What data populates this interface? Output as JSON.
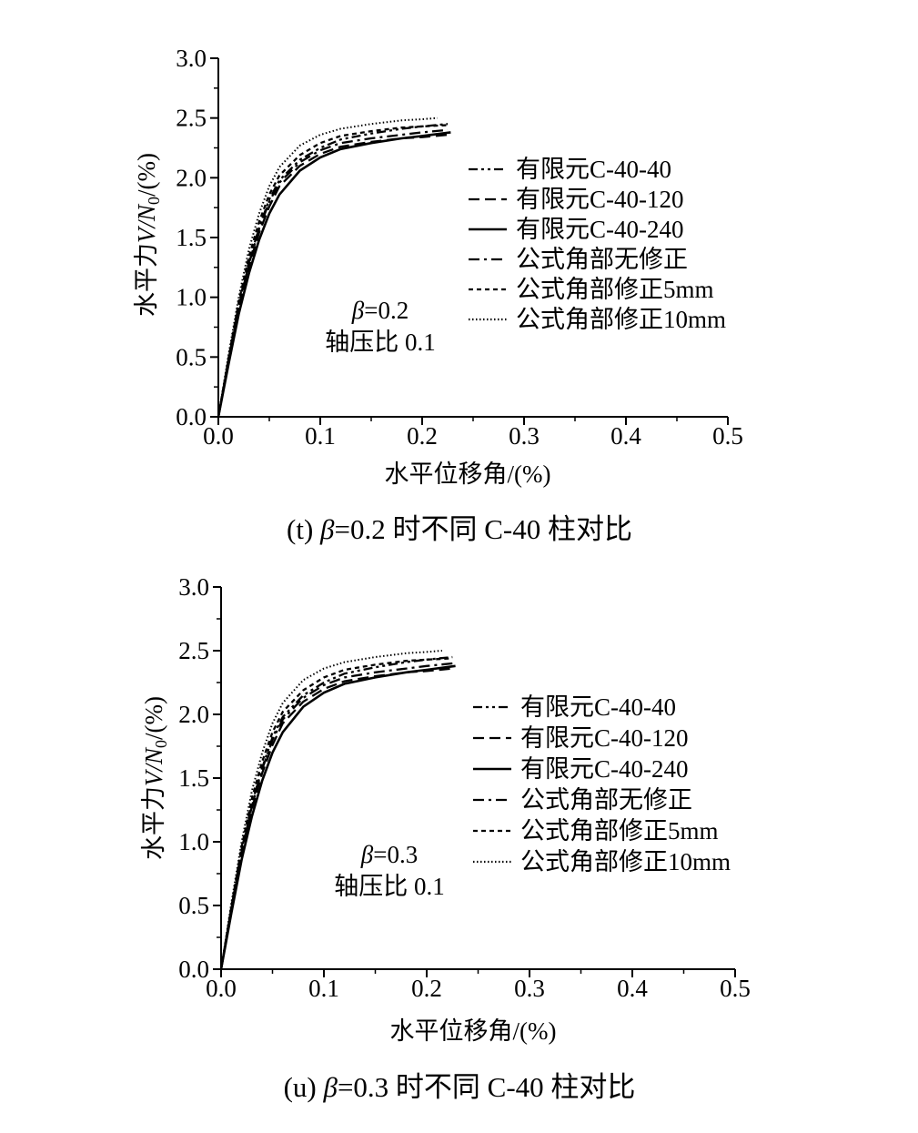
{
  "chart_data": [
    {
      "type": "line",
      "caption_id": "(t)",
      "caption_beta": "β",
      "caption_text": "=0.2 时不同 C-40 柱对比",
      "xlabel": "水平位移角/(%)",
      "ylabel_prefix": "水平力",
      "ylabel_var": "V/N",
      "ylabel_sub": "0",
      "ylabel_suffix": "/(%)",
      "xlim": [
        0,
        0.5
      ],
      "ylim": [
        0,
        3.0
      ],
      "xticks": [
        "0.0",
        "0.1",
        "0.2",
        "0.3",
        "0.4",
        "0.5"
      ],
      "yticks": [
        "0.0",
        "0.5",
        "1.0",
        "1.5",
        "2.0",
        "2.5",
        "3.0"
      ],
      "annotation_beta": "β",
      "annotation_value": "=0.2",
      "annotation_axial": "轴压比  0.1",
      "legend_position": "right",
      "series": [
        {
          "name": "有限元C-40-40",
          "dash": "dashdotdot",
          "x": [
            0,
            0.01,
            0.02,
            0.03,
            0.04,
            0.05,
            0.06,
            0.08,
            0.1,
            0.12,
            0.15,
            0.18,
            0.2,
            0.225
          ],
          "y": [
            0,
            0.48,
            0.94,
            1.3,
            1.58,
            1.82,
            1.98,
            2.15,
            2.25,
            2.32,
            2.37,
            2.41,
            2.43,
            2.45
          ]
        },
        {
          "name": "有限元C-40-120",
          "dash": "dashed",
          "x": [
            0,
            0.01,
            0.02,
            0.03,
            0.04,
            0.05,
            0.06,
            0.08,
            0.1,
            0.12,
            0.15,
            0.18,
            0.2,
            0.225
          ],
          "y": [
            0,
            0.46,
            0.9,
            1.26,
            1.54,
            1.76,
            1.93,
            2.1,
            2.2,
            2.26,
            2.3,
            2.33,
            2.34,
            2.36
          ]
        },
        {
          "name": "有限元C-40-240",
          "dash": "solid",
          "x": [
            0,
            0.01,
            0.02,
            0.03,
            0.04,
            0.05,
            0.06,
            0.08,
            0.1,
            0.12,
            0.15,
            0.18,
            0.2,
            0.228
          ],
          "y": [
            0,
            0.44,
            0.86,
            1.2,
            1.48,
            1.7,
            1.86,
            2.06,
            2.17,
            2.24,
            2.29,
            2.33,
            2.35,
            2.38
          ]
        },
        {
          "name": "公式角部无修正",
          "dash": "dashdot",
          "x": [
            0,
            0.01,
            0.02,
            0.03,
            0.04,
            0.05,
            0.06,
            0.08,
            0.1,
            0.12,
            0.15,
            0.18,
            0.2,
            0.225
          ],
          "y": [
            0,
            0.47,
            0.92,
            1.28,
            1.57,
            1.8,
            1.96,
            2.13,
            2.23,
            2.29,
            2.33,
            2.36,
            2.38,
            2.4
          ]
        },
        {
          "name": "公式角部修正5mm",
          "dash": "shortdash",
          "x": [
            0,
            0.01,
            0.02,
            0.03,
            0.04,
            0.05,
            0.06,
            0.08,
            0.1,
            0.12,
            0.15,
            0.18,
            0.2,
            0.225
          ],
          "y": [
            0,
            0.49,
            0.96,
            1.34,
            1.63,
            1.86,
            2.02,
            2.19,
            2.29,
            2.35,
            2.39,
            2.42,
            2.43,
            2.44
          ]
        },
        {
          "name": "公式角部修正10mm",
          "dash": "dotted",
          "x": [
            0,
            0.01,
            0.02,
            0.03,
            0.04,
            0.05,
            0.06,
            0.08,
            0.1,
            0.12,
            0.15,
            0.18,
            0.2,
            0.215
          ],
          "y": [
            0,
            0.52,
            1.0,
            1.4,
            1.7,
            1.93,
            2.09,
            2.27,
            2.36,
            2.41,
            2.45,
            2.48,
            2.49,
            2.5
          ]
        }
      ]
    },
    {
      "type": "line",
      "caption_id": "(u)",
      "caption_beta": "β",
      "caption_text": "=0.3 时不同 C-40 柱对比",
      "xlabel": "水平位移角/(%)",
      "ylabel_prefix": "水平力",
      "ylabel_var": "V/N",
      "ylabel_sub": "0",
      "ylabel_suffix": "/(%)",
      "xlim": [
        0,
        0.5
      ],
      "ylim": [
        0,
        3.0
      ],
      "xticks": [
        "0.0",
        "0.1",
        "0.2",
        "0.3",
        "0.4",
        "0.5"
      ],
      "yticks": [
        "0.0",
        "0.5",
        "1.0",
        "1.5",
        "2.0",
        "2.5",
        "3.0"
      ],
      "annotation_beta": "β",
      "annotation_value": "=0.3",
      "annotation_axial": "轴压比  0.1",
      "legend_position": "right",
      "series": [
        {
          "name": "有限元C-40-40",
          "dash": "dashdotdot",
          "x": [
            0,
            0.01,
            0.02,
            0.03,
            0.04,
            0.05,
            0.06,
            0.08,
            0.1,
            0.12,
            0.15,
            0.18,
            0.2,
            0.225
          ],
          "y": [
            0,
            0.48,
            0.94,
            1.3,
            1.58,
            1.82,
            1.98,
            2.15,
            2.25,
            2.32,
            2.37,
            2.41,
            2.43,
            2.45
          ]
        },
        {
          "name": "有限元C-40-120",
          "dash": "dashed",
          "x": [
            0,
            0.01,
            0.02,
            0.03,
            0.04,
            0.05,
            0.06,
            0.08,
            0.1,
            0.12,
            0.15,
            0.18,
            0.2,
            0.225
          ],
          "y": [
            0,
            0.46,
            0.9,
            1.26,
            1.54,
            1.76,
            1.93,
            2.1,
            2.2,
            2.26,
            2.3,
            2.33,
            2.34,
            2.36
          ]
        },
        {
          "name": "有限元C-40-240",
          "dash": "solid",
          "x": [
            0,
            0.01,
            0.02,
            0.03,
            0.04,
            0.05,
            0.06,
            0.08,
            0.1,
            0.12,
            0.15,
            0.18,
            0.2,
            0.228
          ],
          "y": [
            0,
            0.44,
            0.86,
            1.2,
            1.48,
            1.7,
            1.86,
            2.06,
            2.17,
            2.24,
            2.29,
            2.33,
            2.35,
            2.38
          ]
        },
        {
          "name": "公式角部无修正",
          "dash": "dashdot",
          "x": [
            0,
            0.01,
            0.02,
            0.03,
            0.04,
            0.05,
            0.06,
            0.08,
            0.1,
            0.12,
            0.15,
            0.18,
            0.2,
            0.225
          ],
          "y": [
            0,
            0.47,
            0.92,
            1.28,
            1.57,
            1.8,
            1.96,
            2.13,
            2.23,
            2.29,
            2.33,
            2.36,
            2.38,
            2.4
          ]
        },
        {
          "name": "公式角部修正5mm",
          "dash": "shortdash",
          "x": [
            0,
            0.01,
            0.02,
            0.03,
            0.04,
            0.05,
            0.06,
            0.08,
            0.1,
            0.12,
            0.15,
            0.18,
            0.2,
            0.225
          ],
          "y": [
            0,
            0.49,
            0.96,
            1.34,
            1.63,
            1.86,
            2.02,
            2.19,
            2.29,
            2.35,
            2.39,
            2.42,
            2.43,
            2.44
          ]
        },
        {
          "name": "公式角部修正10mm",
          "dash": "dotted",
          "x": [
            0,
            0.01,
            0.02,
            0.03,
            0.04,
            0.05,
            0.06,
            0.08,
            0.1,
            0.12,
            0.15,
            0.18,
            0.2,
            0.215
          ],
          "y": [
            0,
            0.52,
            1.0,
            1.4,
            1.7,
            1.93,
            2.09,
            2.27,
            2.36,
            2.41,
            2.45,
            2.48,
            2.49,
            2.5
          ]
        }
      ]
    }
  ]
}
